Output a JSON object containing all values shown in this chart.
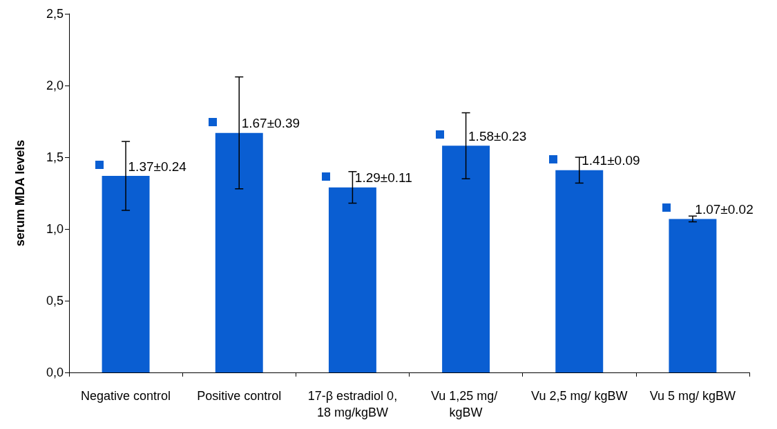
{
  "chart_data": {
    "type": "bar",
    "ylabel": "serum MDA levels",
    "categories": [
      "Negative control",
      "Positive control",
      "17-β estradiol 0,18 mg/kgBW",
      "Vu 1,25 mg/ kgBW",
      "Vu 2,5 mg/ kgBW",
      "Vu 5 mg/ kgBW"
    ],
    "values": [
      1.37,
      1.67,
      1.29,
      1.58,
      1.41,
      1.07
    ],
    "errors": [
      0.24,
      0.39,
      0.11,
      0.23,
      0.09,
      0.02
    ],
    "value_labels": [
      "1.37±0.24",
      "1.67±0.39",
      "1.29±0.11",
      "1.58±0.23",
      "1.41±0.09",
      "1.07±0.02"
    ],
    "color": "#0a5ed2",
    "ylim": [
      0,
      2.5
    ],
    "yticks": [
      {
        "value": 0,
        "label": "0,0"
      },
      {
        "value": 0.5,
        "label": "0,5"
      },
      {
        "value": 1,
        "label": "1,0"
      },
      {
        "value": 1.5,
        "label": "1,5"
      },
      {
        "value": 2,
        "label": "2,0"
      },
      {
        "value": 2.5,
        "label": "2,5"
      }
    ],
    "grid": false
  }
}
